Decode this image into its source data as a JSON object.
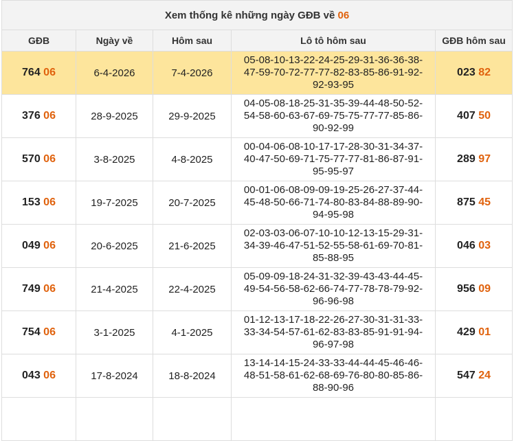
{
  "title": {
    "text": "Xem thống kê những ngày GĐB về",
    "highlight": "06"
  },
  "columns": [
    "GĐB",
    "Ngày về",
    "Hôm sau",
    "Lô tô hôm sau",
    "GĐB hôm sau"
  ],
  "rows": [
    {
      "gdb": [
        "764",
        "06"
      ],
      "ngay_ve": "6-4-2026",
      "hom_sau": "7-4-2026",
      "loto": "05-08-10-13-22-24-25-29-31-36-36-38-47-59-70-72-77-77-82-83-85-86-91-92-92-93-95",
      "gdb_hom_sau": [
        "023",
        "82"
      ]
    },
    {
      "gdb": [
        "376",
        "06"
      ],
      "ngay_ve": "28-9-2025",
      "hom_sau": "29-9-2025",
      "loto": "04-05-08-18-25-31-35-39-44-48-50-52-54-58-60-63-67-69-75-75-77-77-85-86-90-92-99",
      "gdb_hom_sau": [
        "407",
        "50"
      ]
    },
    {
      "gdb": [
        "570",
        "06"
      ],
      "ngay_ve": "3-8-2025",
      "hom_sau": "4-8-2025",
      "loto": "00-04-06-08-10-17-17-28-30-31-34-37-40-47-50-69-71-75-77-77-81-86-87-91-95-95-97",
      "gdb_hom_sau": [
        "289",
        "97"
      ]
    },
    {
      "gdb": [
        "153",
        "06"
      ],
      "ngay_ve": "19-7-2025",
      "hom_sau": "20-7-2025",
      "loto": "00-01-06-08-09-09-19-25-26-27-37-44-45-48-50-66-71-74-80-83-84-88-89-90-94-95-98",
      "gdb_hom_sau": [
        "875",
        "45"
      ]
    },
    {
      "gdb": [
        "049",
        "06"
      ],
      "ngay_ve": "20-6-2025",
      "hom_sau": "21-6-2025",
      "loto": "02-03-03-06-07-10-10-12-13-15-29-31-34-39-46-47-51-52-55-58-61-69-70-81-85-88-95",
      "gdb_hom_sau": [
        "046",
        "03"
      ]
    },
    {
      "gdb": [
        "749",
        "06"
      ],
      "ngay_ve": "21-4-2025",
      "hom_sau": "22-4-2025",
      "loto": "05-09-09-18-24-31-32-39-43-43-44-45-49-54-56-58-62-66-74-77-78-78-79-92-96-96-98",
      "gdb_hom_sau": [
        "956",
        "09"
      ]
    },
    {
      "gdb": [
        "754",
        "06"
      ],
      "ngay_ve": "3-1-2025",
      "hom_sau": "4-1-2025",
      "loto": "01-12-13-17-18-22-26-27-30-31-31-33-33-34-54-57-61-62-83-83-85-91-91-94-96-97-98",
      "gdb_hom_sau": [
        "429",
        "01"
      ]
    },
    {
      "gdb": [
        "043",
        "06"
      ],
      "ngay_ve": "17-8-2024",
      "hom_sau": "18-8-2024",
      "loto": "13-14-14-15-24-33-33-44-44-45-46-46-48-51-58-61-62-68-69-76-80-80-85-86-88-90-96",
      "gdb_hom_sau": [
        "547",
        "24"
      ]
    }
  ]
}
